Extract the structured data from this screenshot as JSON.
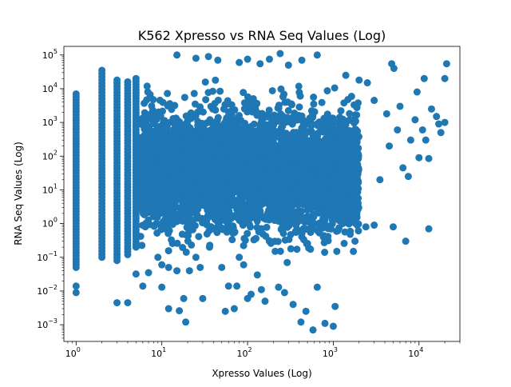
{
  "chart_data": {
    "type": "scatter",
    "title": "K562 Xpresso vs RNA Seq Values (Log)",
    "xlabel": "Xpresso Values (Log)",
    "ylabel": "RNA Seq Values (Log)",
    "xscale": "log",
    "yscale": "log",
    "xlim": [
      0.72,
      30000
    ],
    "ylim": [
      0.00032,
      180000
    ],
    "grid": false,
    "marker_color": "#1f77b4",
    "x_ticks": [
      {
        "value": 1,
        "base": "10",
        "exp": "0"
      },
      {
        "value": 10,
        "base": "10",
        "exp": "1"
      },
      {
        "value": 100,
        "base": "10",
        "exp": "2"
      },
      {
        "value": 1000,
        "base": "10",
        "exp": "3"
      },
      {
        "value": 10000,
        "base": "10",
        "exp": "4"
      }
    ],
    "y_ticks": [
      {
        "value": 0.001,
        "base": "10",
        "exp": "−3"
      },
      {
        "value": 0.01,
        "base": "10",
        "exp": "−2"
      },
      {
        "value": 0.1,
        "base": "10",
        "exp": "−1"
      },
      {
        "value": 1,
        "base": "10",
        "exp": "0"
      },
      {
        "value": 10,
        "base": "10",
        "exp": "1"
      },
      {
        "value": 100,
        "base": "10",
        "exp": "2"
      },
      {
        "value": 1000,
        "base": "10",
        "exp": "3"
      },
      {
        "value": 10000,
        "base": "10",
        "exp": "4"
      },
      {
        "value": 100000,
        "base": "10",
        "exp": "5"
      }
    ],
    "columns": [
      {
        "x": 1,
        "ymin": 0.05,
        "ymax": 7000
      },
      {
        "x": 2,
        "ymin": 0.1,
        "ymax": 35000
      },
      {
        "x": 3,
        "ymin": 0.08,
        "ymax": 18000
      },
      {
        "x": 4,
        "ymin": 0.12,
        "ymax": 16000
      },
      {
        "x": 5,
        "ymin": 0.2,
        "ymax": 20000
      }
    ],
    "points": [
      [
        1,
        0.014
      ],
      [
        1,
        0.009
      ],
      [
        3,
        0.0045
      ],
      [
        4,
        0.0045
      ],
      [
        5,
        0.032
      ],
      [
        6,
        0.014
      ],
      [
        7,
        0.035
      ],
      [
        9,
        0.1
      ],
      [
        10,
        0.06
      ],
      [
        10,
        0.013
      ],
      [
        12,
        0.05
      ],
      [
        12,
        0.003
      ],
      [
        15,
        0.04
      ],
      [
        16,
        0.0026
      ],
      [
        18,
        0.006
      ],
      [
        19,
        0.0012
      ],
      [
        21,
        0.04
      ],
      [
        25,
        0.1
      ],
      [
        28,
        0.05
      ],
      [
        30,
        0.006
      ],
      [
        36,
        0.2
      ],
      [
        50,
        0.05
      ],
      [
        55,
        0.0025
      ],
      [
        60,
        0.014
      ],
      [
        70,
        0.003
      ],
      [
        75,
        0.014
      ],
      [
        80,
        0.1
      ],
      [
        90,
        0.06
      ],
      [
        100,
        0.006
      ],
      [
        110,
        0.008
      ],
      [
        130,
        0.03
      ],
      [
        145,
        0.011
      ],
      [
        160,
        0.005
      ],
      [
        180,
        0.3
      ],
      [
        210,
        0.15
      ],
      [
        230,
        0.013
      ],
      [
        270,
        0.009
      ],
      [
        290,
        0.07
      ],
      [
        340,
        0.004
      ],
      [
        420,
        0.0012
      ],
      [
        480,
        0.0025
      ],
      [
        580,
        0.0007
      ],
      [
        650,
        0.013
      ],
      [
        800,
        0.0011
      ],
      [
        1000,
        0.0009
      ],
      [
        1050,
        0.0035
      ],
      [
        1100,
        0.15
      ],
      [
        1900,
        0.9
      ],
      [
        2400,
        0.8
      ],
      [
        3000,
        0.9
      ],
      [
        5000,
        0.8
      ],
      [
        7000,
        0.3
      ],
      [
        13000,
        0.7
      ],
      [
        15,
        100000
      ],
      [
        25,
        80000
      ],
      [
        35,
        90000
      ],
      [
        45,
        70000
      ],
      [
        80,
        60000
      ],
      [
        100,
        75000
      ],
      [
        140,
        55000
      ],
      [
        180,
        75000
      ],
      [
        240,
        110000
      ],
      [
        300,
        50000
      ],
      [
        430,
        70000
      ],
      [
        650,
        100000
      ],
      [
        4800,
        55000
      ],
      [
        5100,
        40000
      ],
      [
        11500,
        20000
      ],
      [
        21000,
        55000
      ],
      [
        20000,
        20000
      ],
      [
        9500,
        8000
      ],
      [
        11000,
        600
      ],
      [
        12000,
        300
      ],
      [
        13000,
        85
      ],
      [
        16000,
        1500
      ],
      [
        18000,
        500
      ],
      [
        20000,
        1000
      ],
      [
        17000,
        900
      ],
      [
        10000,
        90
      ],
      [
        7500,
        25
      ],
      [
        6000,
        3000
      ],
      [
        3500,
        20
      ],
      [
        4500,
        200
      ],
      [
        9000,
        1200
      ],
      [
        8000,
        300
      ],
      [
        14000,
        2500
      ],
      [
        3000,
        4500
      ],
      [
        2500,
        15000
      ],
      [
        2000,
        18000
      ],
      [
        1400,
        25000
      ],
      [
        4200,
        1800
      ],
      [
        5600,
        600
      ],
      [
        6500,
        45
      ]
    ]
  }
}
